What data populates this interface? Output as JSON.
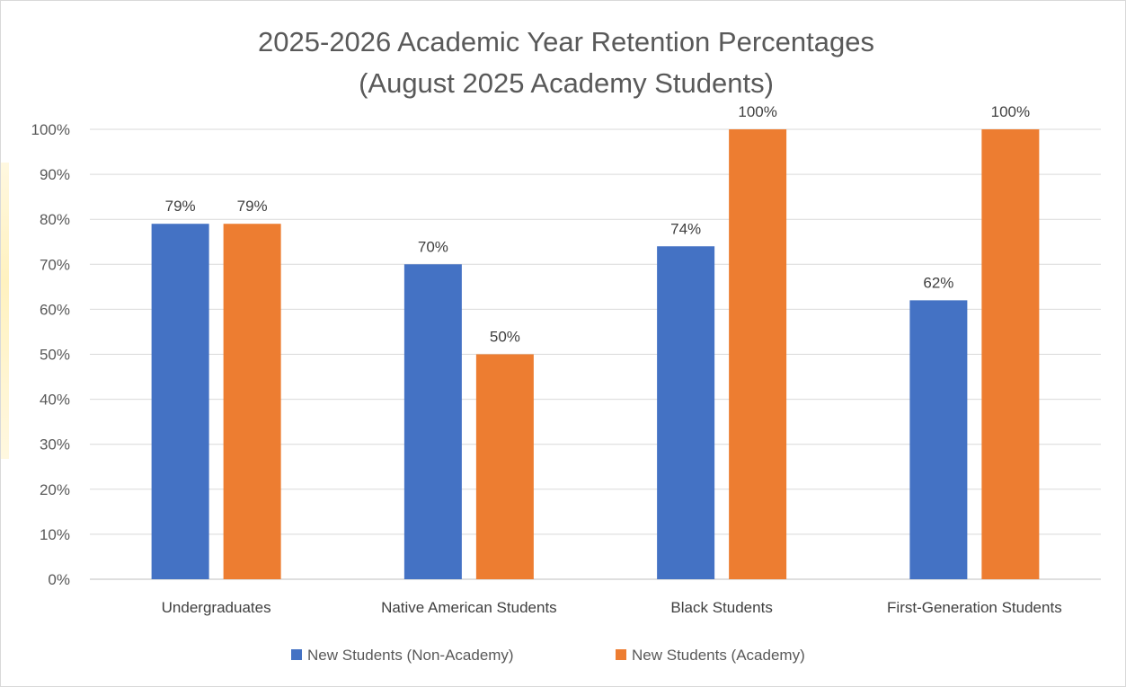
{
  "chart_data": {
    "type": "bar",
    "title": "2025-2026 Academic Year Retention Percentages",
    "subtitle": "(August 2025 Academy Students)",
    "categories": [
      "Undergraduates",
      "Native American Students",
      "Black Students",
      "First-Generation Students"
    ],
    "series": [
      {
        "name": "New Students (Non-Academy)",
        "color": "#4472c4",
        "values": [
          79,
          70,
          74,
          62
        ],
        "labels": [
          "79%",
          "70%",
          "74%",
          "62%"
        ]
      },
      {
        "name": "New Students (Academy)",
        "color": "#ed7d31",
        "values": [
          79,
          50,
          100,
          100
        ],
        "labels": [
          "79%",
          "50%",
          "100%",
          "100%"
        ]
      }
    ],
    "ylim": [
      0,
      100
    ],
    "yticks": [
      "0%",
      "10%",
      "20%",
      "30%",
      "40%",
      "50%",
      "60%",
      "70%",
      "80%",
      "90%",
      "100%"
    ],
    "grid": true,
    "legend_position": "bottom"
  }
}
